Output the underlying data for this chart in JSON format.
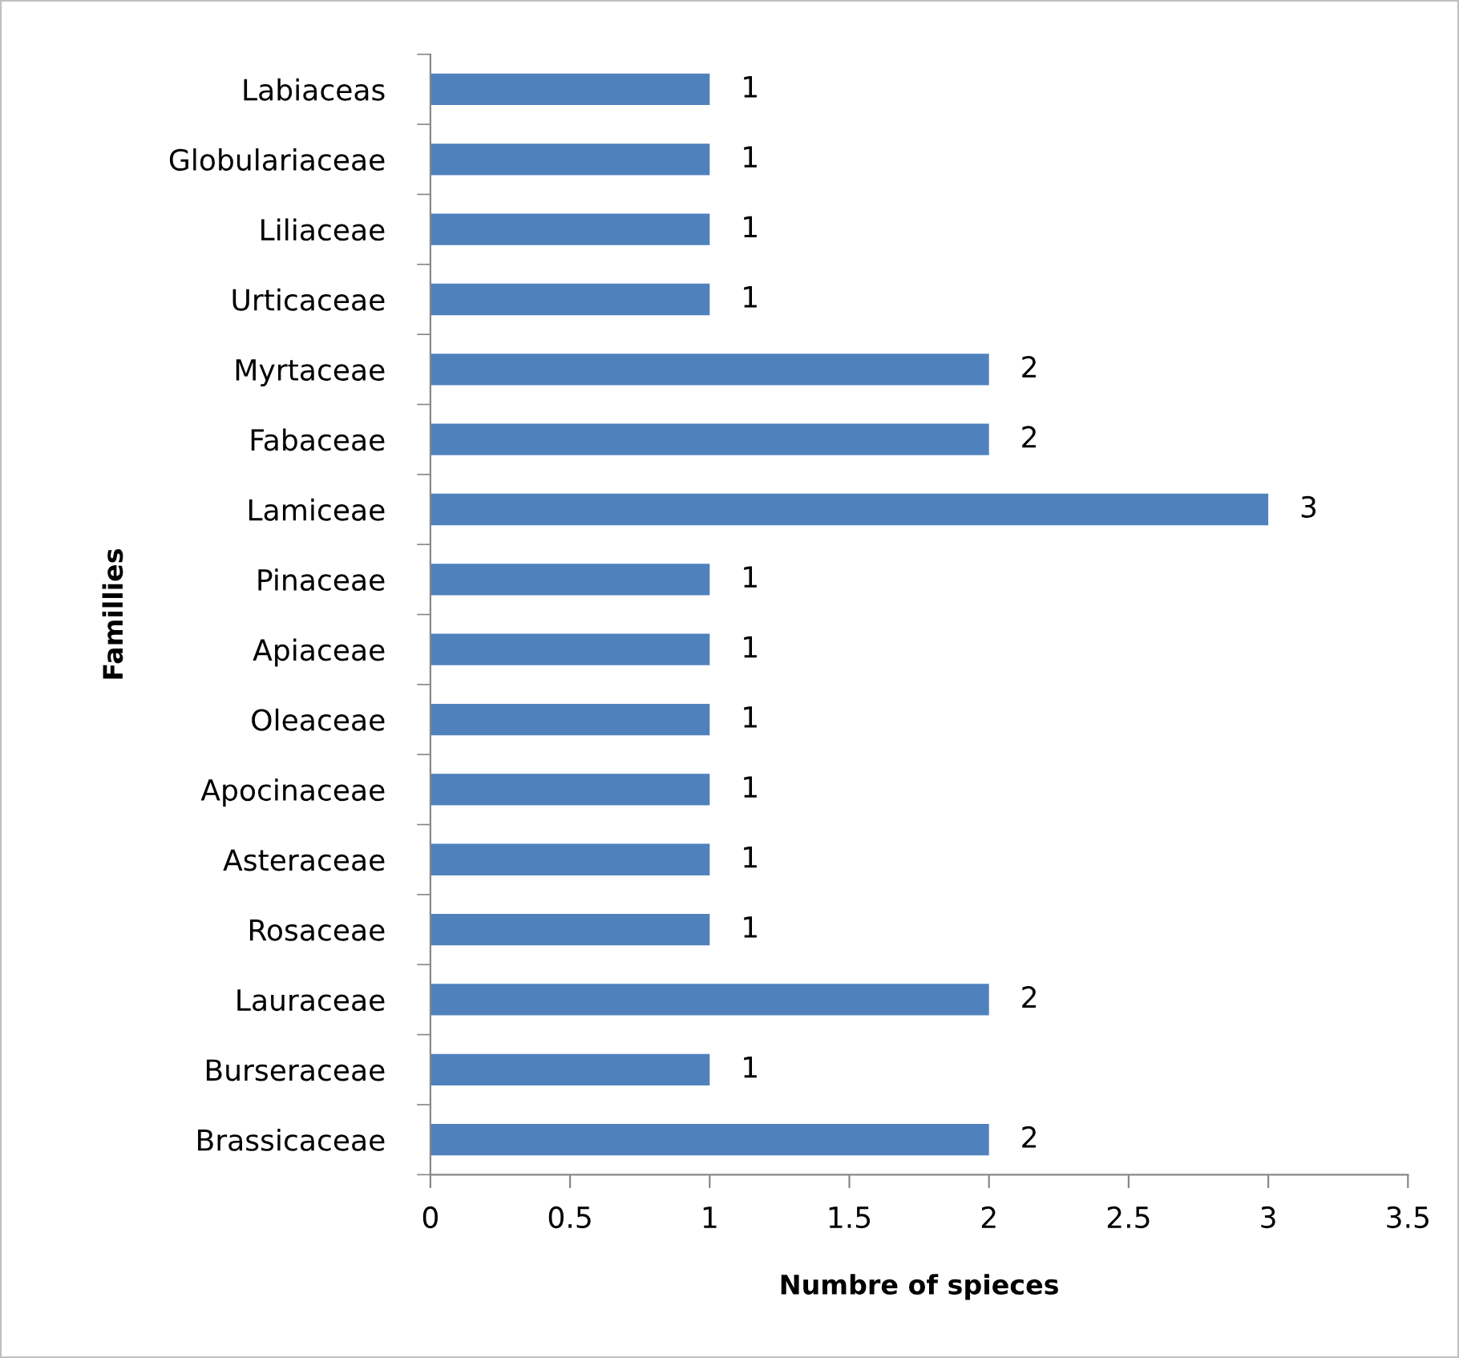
{
  "chart_data": {
    "type": "bar",
    "orientation": "horizontal",
    "xlabel": "Numbre of spieces",
    "ylabel": "Famillies",
    "categories": [
      "Labiaceas",
      "Globulariaceae",
      "Liliaceae",
      "Urticaceae",
      "Myrtaceae",
      "Fabaceae",
      "Lamiceae",
      "Pinaceae",
      "Apiaceae",
      "Oleaceae",
      "Apocinaceae",
      "Asteraceae",
      "Rosaceae",
      "Lauraceae",
      "Burseraceae",
      "Brassicaceae"
    ],
    "values": [
      1,
      1,
      1,
      1,
      2,
      2,
      3,
      1,
      1,
      1,
      1,
      1,
      1,
      2,
      1,
      2
    ],
    "color": "#4f81bd",
    "xlim": [
      0,
      3.5
    ],
    "xticks": [
      0,
      0.5,
      1,
      1.5,
      2,
      2.5,
      3,
      3.5
    ],
    "data_labels": true,
    "grid": false,
    "legend": false
  }
}
